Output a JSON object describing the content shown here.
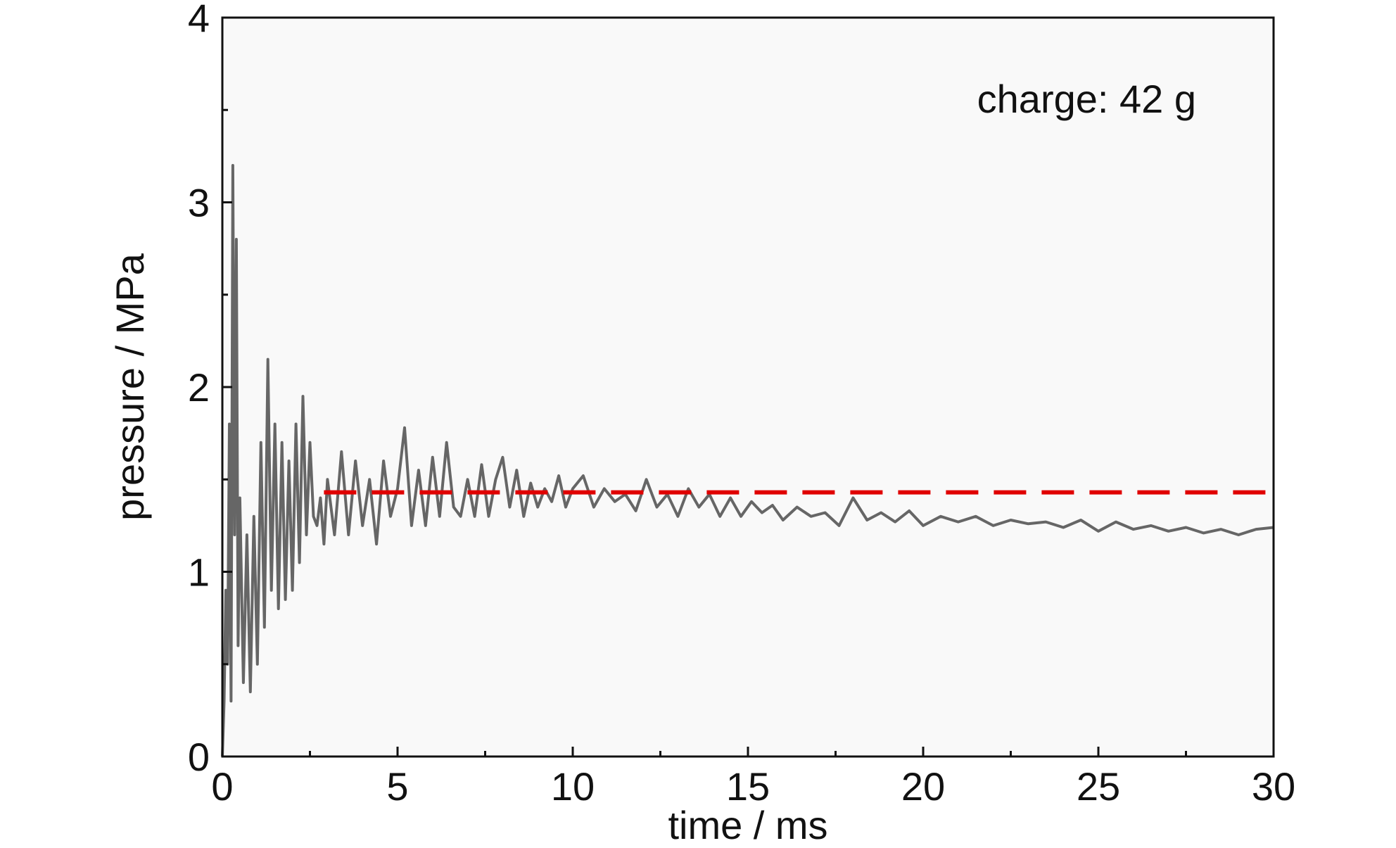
{
  "chart_data": {
    "type": "line",
    "title": "",
    "xlabel": "time / ms",
    "ylabel": "pressure / MPa",
    "xlim": [
      0,
      30
    ],
    "ylim": [
      0,
      4
    ],
    "xticks": [
      0,
      5,
      10,
      15,
      20,
      25,
      30
    ],
    "yticks": [
      0,
      1,
      2,
      3,
      4
    ],
    "xtick_labels": [
      "0",
      "5",
      "10",
      "15",
      "20",
      "25",
      "30"
    ],
    "ytick_labels": [
      "0",
      "1",
      "2",
      "3",
      "4"
    ],
    "grid": false,
    "annotation": "charge: 42 g",
    "annotation_position": "top-right",
    "series": [
      {
        "style": "solid",
        "color": "#666666",
        "x": [
          0.0,
          0.05,
          0.1,
          0.15,
          0.2,
          0.25,
          0.3,
          0.35,
          0.4,
          0.45,
          0.5,
          0.6,
          0.7,
          0.8,
          0.9,
          1.0,
          1.1,
          1.2,
          1.3,
          1.4,
          1.5,
          1.6,
          1.7,
          1.8,
          1.9,
          2.0,
          2.1,
          2.2,
          2.3,
          2.4,
          2.5,
          2.6,
          2.7,
          2.8,
          2.9,
          3.0,
          3.2,
          3.4,
          3.6,
          3.8,
          4.0,
          4.2,
          4.4,
          4.6,
          4.8,
          5.0,
          5.2,
          5.4,
          5.6,
          5.8,
          6.0,
          6.2,
          6.4,
          6.6,
          6.8,
          7.0,
          7.2,
          7.4,
          7.6,
          7.8,
          8.0,
          8.2,
          8.4,
          8.6,
          8.8,
          9.0,
          9.2,
          9.4,
          9.6,
          9.8,
          10.0,
          10.3,
          10.6,
          10.9,
          11.2,
          11.5,
          11.8,
          12.1,
          12.4,
          12.7,
          13.0,
          13.3,
          13.6,
          13.9,
          14.2,
          14.5,
          14.8,
          15.1,
          15.4,
          15.7,
          16.0,
          16.4,
          16.8,
          17.2,
          17.6,
          18.0,
          18.4,
          18.8,
          19.2,
          19.6,
          20.0,
          20.5,
          21.0,
          21.5,
          22.0,
          22.5,
          23.0,
          23.5,
          24.0,
          24.5,
          25.0,
          25.5,
          26.0,
          26.5,
          27.0,
          27.5,
          28.0,
          28.5,
          29.0,
          29.5,
          30.0
        ],
        "y": [
          0.0,
          0.3,
          0.9,
          0.5,
          1.8,
          0.3,
          3.2,
          1.2,
          2.8,
          0.6,
          1.4,
          0.4,
          1.2,
          0.35,
          1.3,
          0.5,
          1.7,
          0.7,
          2.15,
          0.9,
          1.8,
          0.8,
          1.7,
          0.85,
          1.6,
          0.9,
          1.8,
          1.05,
          1.95,
          1.2,
          1.7,
          1.3,
          1.25,
          1.4,
          1.15,
          1.5,
          1.2,
          1.65,
          1.2,
          1.6,
          1.25,
          1.5,
          1.15,
          1.6,
          1.3,
          1.45,
          1.78,
          1.25,
          1.55,
          1.25,
          1.62,
          1.3,
          1.7,
          1.35,
          1.3,
          1.5,
          1.3,
          1.58,
          1.3,
          1.5,
          1.62,
          1.35,
          1.55,
          1.3,
          1.48,
          1.35,
          1.45,
          1.38,
          1.52,
          1.35,
          1.45,
          1.52,
          1.35,
          1.45,
          1.38,
          1.42,
          1.33,
          1.5,
          1.35,
          1.42,
          1.3,
          1.45,
          1.35,
          1.42,
          1.3,
          1.4,
          1.3,
          1.38,
          1.32,
          1.36,
          1.28,
          1.35,
          1.3,
          1.32,
          1.25,
          1.4,
          1.28,
          1.32,
          1.27,
          1.33,
          1.25,
          1.3,
          1.27,
          1.3,
          1.25,
          1.28,
          1.26,
          1.27,
          1.24,
          1.28,
          1.22,
          1.27,
          1.23,
          1.25,
          1.22,
          1.24,
          1.21,
          1.23,
          1.2,
          1.23,
          1.24
        ]
      },
      {
        "style": "dashed",
        "color": "#e00000",
        "x": [
          2.9,
          30
        ],
        "y": [
          1.43,
          1.43
        ]
      }
    ]
  }
}
